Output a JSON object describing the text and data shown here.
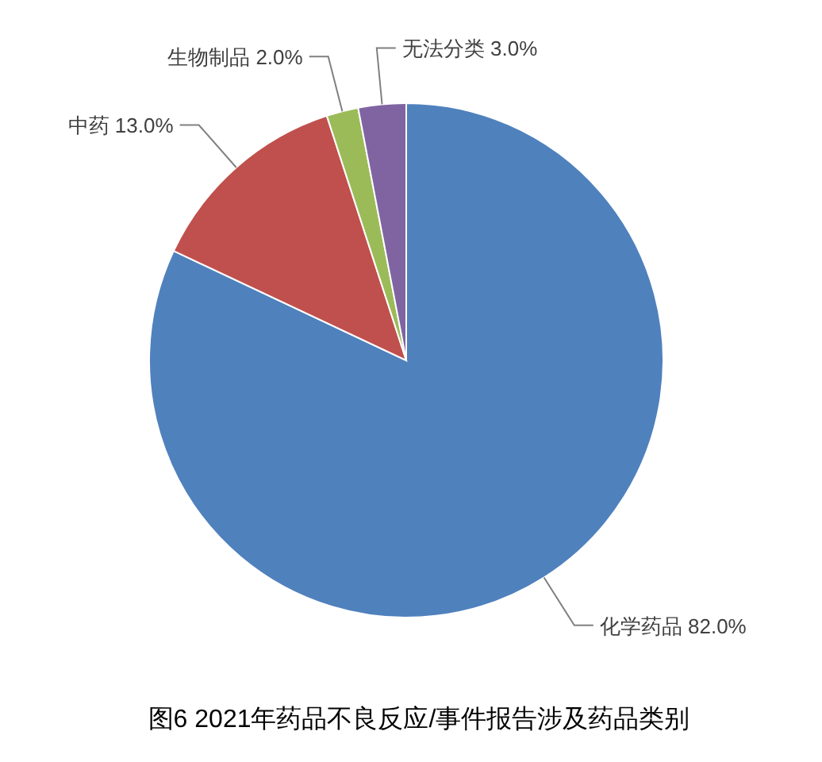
{
  "chart_data": {
    "type": "pie",
    "title": "图6 2021年药品不良反应/事件报告涉及药品类别",
    "categories": [
      "化学药品",
      "中药",
      "生物制品",
      "无法分类"
    ],
    "values": [
      82.0,
      13.0,
      2.0,
      3.0
    ],
    "colors": [
      "#4f81bd",
      "#c0504d",
      "#9bbb59",
      "#8064a2"
    ],
    "value_labels": [
      "82.0%",
      "13.0%",
      "2.0%",
      "3.0%"
    ]
  }
}
